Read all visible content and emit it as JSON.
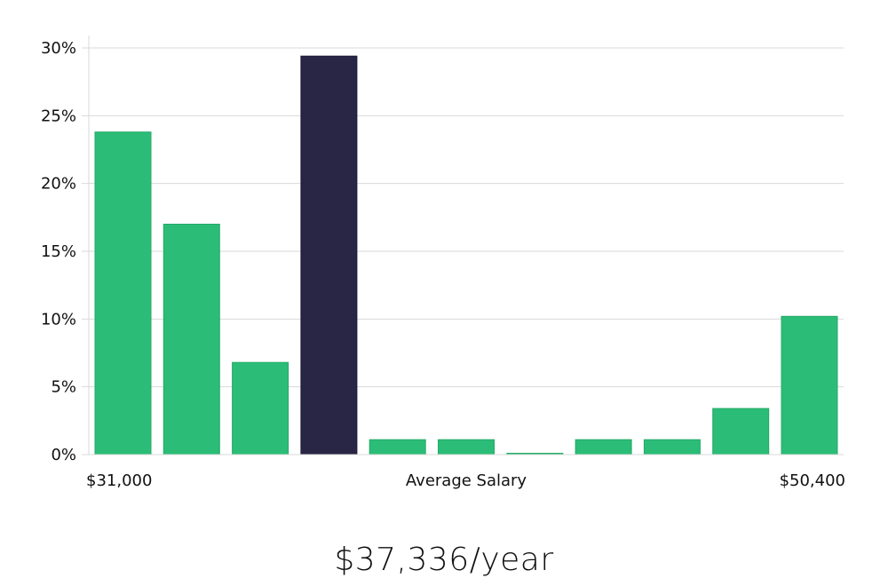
{
  "chart_data": {
    "type": "bar",
    "title": "",
    "xlabel": "Average Salary",
    "ylabel": "",
    "x_range_labels": {
      "min": "$31,000",
      "max": "$50,400"
    },
    "ylim": [
      0,
      30
    ],
    "yticks": [
      0,
      5,
      10,
      15,
      20,
      25,
      30
    ],
    "ytick_labels": [
      "0%",
      "5%",
      "10%",
      "15%",
      "20%",
      "25%",
      "30%"
    ],
    "grid": true,
    "values": [
      23.8,
      17.0,
      6.8,
      29.4,
      1.1,
      1.1,
      0.1,
      1.1,
      1.1,
      3.4,
      10.2
    ],
    "highlight_index": 3,
    "colors": {
      "bar": "#2bbd77",
      "highlight": "#292645",
      "grid": "#d9d9d9"
    }
  },
  "headline": {
    "salary": "$37,336/year"
  }
}
